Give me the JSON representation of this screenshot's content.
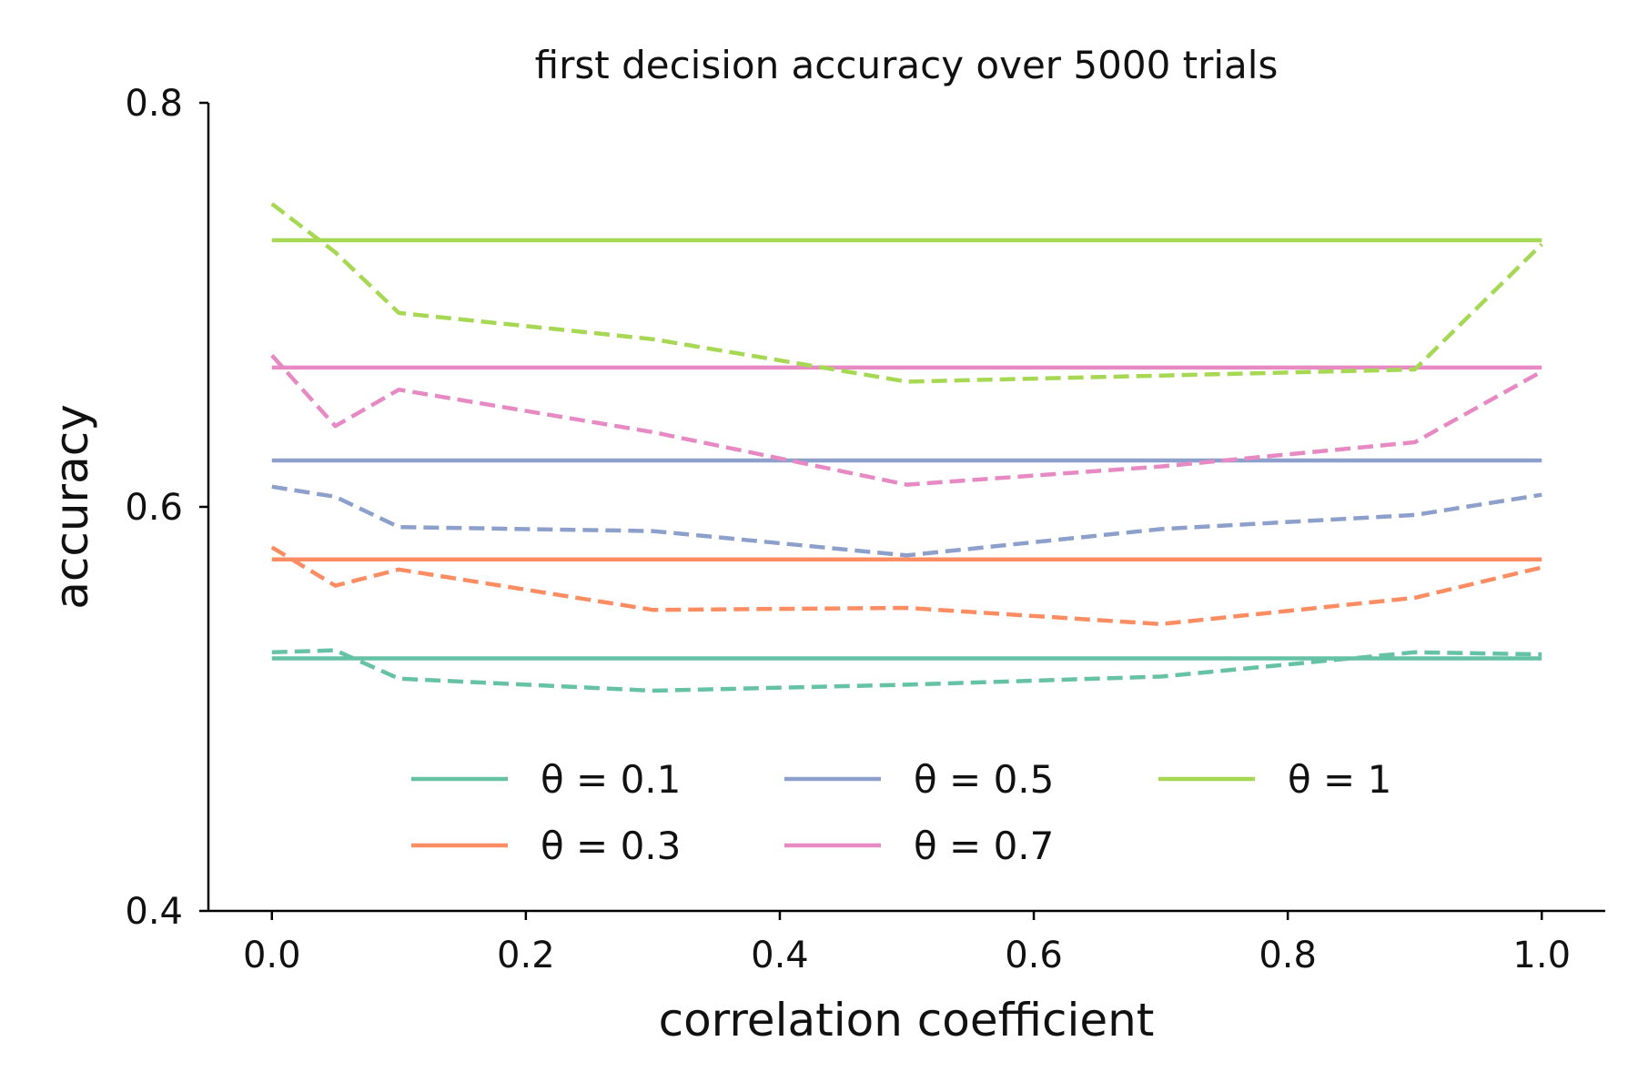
{
  "chart_data": {
    "type": "line",
    "title": "first decision accuracy over 5000 trials",
    "xlabel": "correlation coefficient",
    "ylabel": "accuracy",
    "xlim": [
      -0.05,
      1.05
    ],
    "ylim": [
      0.4,
      0.8
    ],
    "xticks": [
      0.0,
      0.2,
      0.4,
      0.6,
      0.8,
      1.0
    ],
    "xtick_labels": [
      "0.0",
      "0.2",
      "0.4",
      "0.6",
      "0.8",
      "1.0"
    ],
    "yticks": [
      0.4,
      0.6,
      0.8
    ],
    "ytick_labels": [
      "0.4",
      "0.6",
      "0.8"
    ],
    "grid": false,
    "legend_position": "lower center",
    "x": [
      0.0,
      0.05,
      0.1,
      0.3,
      0.5,
      0.7,
      0.9,
      1.0
    ],
    "series": [
      {
        "name": "θ = 0.1",
        "color": "#66c2a5",
        "solid": 0.525,
        "dashed": [
          0.528,
          0.529,
          0.515,
          0.509,
          0.512,
          0.516,
          0.528,
          0.527
        ]
      },
      {
        "name": "θ = 0.3",
        "color": "#fc8d62",
        "solid": 0.574,
        "dashed": [
          0.58,
          0.561,
          0.569,
          0.549,
          0.55,
          0.542,
          0.555,
          0.57
        ]
      },
      {
        "name": "θ = 0.5",
        "color": "#8da0cb",
        "solid": 0.623,
        "dashed": [
          0.61,
          0.605,
          0.59,
          0.588,
          0.576,
          0.589,
          0.596,
          0.606
        ]
      },
      {
        "name": "θ = 0.7",
        "color": "#e78ac3",
        "solid": 0.669,
        "dashed": [
          0.675,
          0.64,
          0.658,
          0.637,
          0.611,
          0.62,
          0.632,
          0.667
        ]
      },
      {
        "name": "θ = 1",
        "color": "#a6d854",
        "solid": 0.732,
        "dashed": [
          0.75,
          0.726,
          0.696,
          0.683,
          0.662,
          0.665,
          0.668,
          0.73
        ]
      }
    ]
  }
}
